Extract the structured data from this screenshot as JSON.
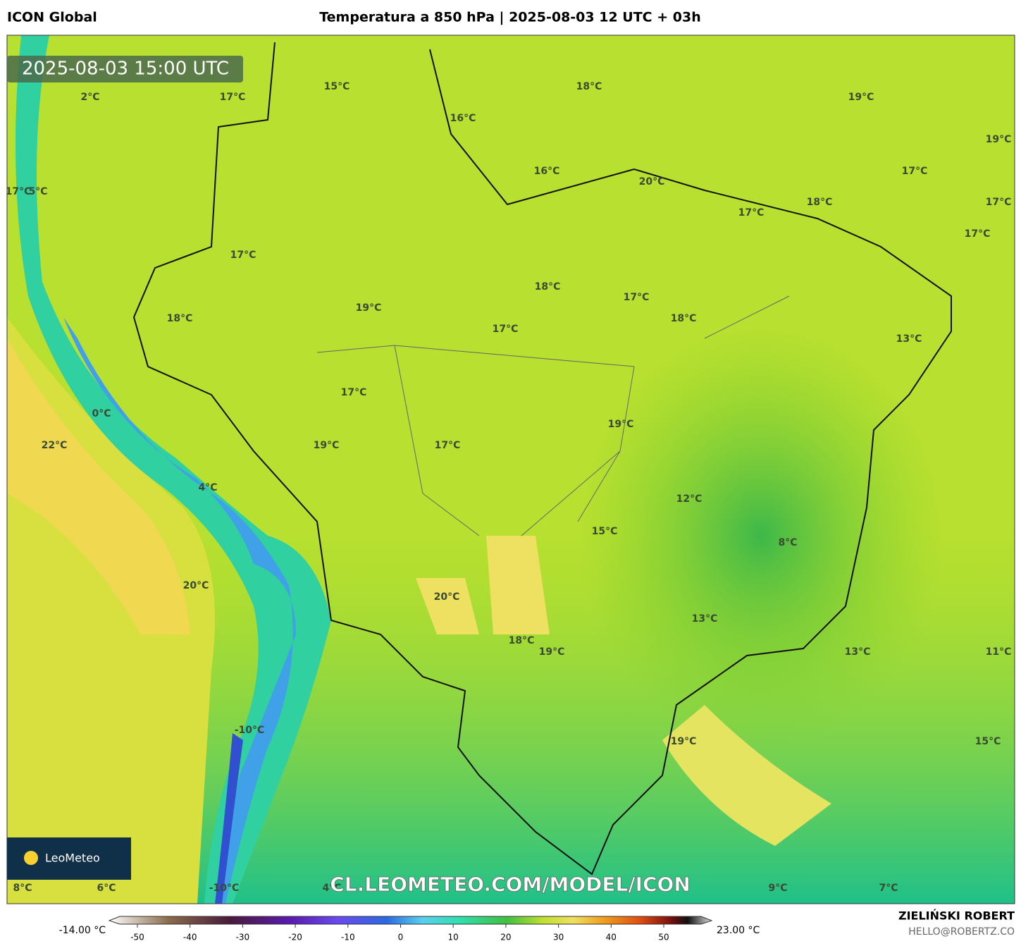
{
  "header": {
    "model": "ICON Global",
    "title": "Temperatura a 850 hPa | 2025-08-03 12 UTC + 03h"
  },
  "timestamp": "2025-08-03 15:00 UTC",
  "logo": "LeoMeteo",
  "watermark": "CL.LEOMETEO.COM/MODEL/ICON",
  "map_labels": [
    "2°C",
    "17°C",
    "15°C",
    "18°C",
    "19°C",
    "16°C",
    "19°C",
    "16°C",
    "20°C",
    "17°C",
    "17°C",
    "5°C",
    "17°C",
    "18°C",
    "17°C",
    "17°C",
    "17°C",
    "18°C",
    "17°C",
    "19°C",
    "18°C",
    "18°C",
    "17°C",
    "13°C",
    "17°C",
    "0°C",
    "19°C",
    "22°C",
    "19°C",
    "17°C",
    "4°C",
    "12°C",
    "15°C",
    "8°C",
    "20°C",
    "20°C",
    "13°C",
    "18°C",
    "19°C",
    "13°C",
    "11°C",
    "-10°C",
    "19°C",
    "15°C",
    "8°C",
    "6°C",
    "-10°C",
    "4°C",
    "9°C",
    "7°C"
  ],
  "colorbar": {
    "min_label": "-14.00 °C",
    "max_label": "23.00 °C",
    "ticks": [
      -50,
      -40,
      -30,
      -20,
      -10,
      0,
      10,
      20,
      30,
      40,
      50
    ]
  },
  "credit": {
    "name": "ZIELIŃSKI ROBERT",
    "email": "HELLO@ROBERTZ.CO"
  }
}
